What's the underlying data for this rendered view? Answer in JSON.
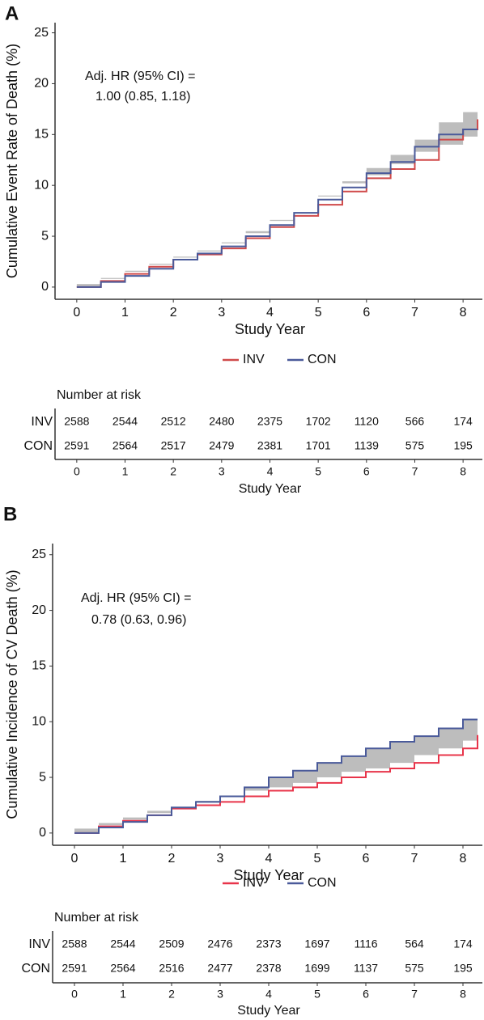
{
  "chart_data": [
    {
      "type": "line",
      "panel": "A",
      "y_label": "Cumulative Event Rate of Death (%)",
      "x_label": "Study Year",
      "annotation": [
        "Adj. HR (95% CI) =",
        "1.00 (0.85, 1.18)"
      ],
      "x": [
        0,
        0.5,
        1,
        1.5,
        2,
        2.5,
        3,
        3.5,
        4,
        4.5,
        5,
        5.5,
        6,
        6.5,
        7,
        7.5,
        8,
        8.3
      ],
      "series": [
        {
          "name": "INV",
          "color": "#d04a4a",
          "values": [
            0,
            0.6,
            1.3,
            2.0,
            2.7,
            3.2,
            3.8,
            4.8,
            5.9,
            7.0,
            8.1,
            9.4,
            10.7,
            11.6,
            12.5,
            14.5,
            15.5,
            16.5
          ]
        },
        {
          "name": "CON",
          "color": "#4a5a9a",
          "values": [
            0,
            0.5,
            1.1,
            1.8,
            2.7,
            3.3,
            4.0,
            5.0,
            6.1,
            7.3,
            8.6,
            9.8,
            11.2,
            12.3,
            13.8,
            15.0,
            15.5,
            15.5
          ]
        }
      ],
      "ci_lower": [
        0,
        0.3,
        0.9,
        1.6,
        2.3,
        2.9,
        3.5,
        4.4,
        5.5,
        6.6,
        7.7,
        8.9,
        10.2,
        11.0,
        12.1,
        13.3,
        14.0,
        14.8
      ],
      "ci_upper": [
        0,
        0.8,
        1.5,
        2.2,
        3.0,
        3.6,
        4.3,
        5.3,
        6.5,
        7.7,
        9.0,
        10.4,
        11.7,
        13.0,
        14.5,
        16.2,
        17.2,
        17.8
      ],
      "band_color": "#bdbdbd",
      "xlim": [
        -0.45,
        8.4
      ],
      "ylim": [
        -1.2,
        26
      ],
      "xticks": [
        0,
        1,
        2,
        3,
        4,
        5,
        6,
        7,
        8
      ],
      "yticks": [
        0,
        5,
        10,
        15,
        20,
        25
      ],
      "risk_table": {
        "title": "Number at risk",
        "x_label": "Study Year",
        "rows": [
          {
            "name": "INV",
            "color": "#d04a4a",
            "values": [
              2588,
              2544,
              2512,
              2480,
              2375,
              1702,
              1120,
              566,
              174
            ]
          },
          {
            "name": "CON",
            "color": "#6a7aaa",
            "values": [
              2591,
              2564,
              2517,
              2479,
              2381,
              1701,
              1139,
              575,
              195
            ]
          }
        ]
      }
    },
    {
      "type": "line",
      "panel": "B",
      "y_label": "Cumulative Incidence of CV Death (%)",
      "x_label": "Study Year",
      "annotation": [
        "Adj. HR (95% CI) =",
        "0.78 (0.63, 0.96)"
      ],
      "x": [
        0,
        0.5,
        1,
        1.5,
        2,
        2.5,
        3,
        3.5,
        4,
        4.5,
        5,
        5.5,
        6,
        6.5,
        7,
        7.5,
        8,
        8.3
      ],
      "series": [
        {
          "name": "INV",
          "color": "#e8344a",
          "values": [
            0,
            0.6,
            1.1,
            1.6,
            2.2,
            2.5,
            2.8,
            3.3,
            3.8,
            4.1,
            4.5,
            5.0,
            5.5,
            5.8,
            6.3,
            7.0,
            7.6,
            8.8
          ]
        },
        {
          "name": "CON",
          "color": "#4a5a9a",
          "values": [
            0,
            0.5,
            1.0,
            1.6,
            2.3,
            2.8,
            3.3,
            4.1,
            5.0,
            5.6,
            6.3,
            6.9,
            7.6,
            8.2,
            8.7,
            9.4,
            10.2,
            10.2
          ]
        }
      ],
      "ci_lower": [
        0,
        0.4,
        0.9,
        1.4,
        2.0,
        2.4,
        2.8,
        3.3,
        3.8,
        4.1,
        4.5,
        5.0,
        5.5,
        5.8,
        6.3,
        7.0,
        7.6,
        8.3
      ],
      "ci_upper": [
        0,
        0.7,
        1.2,
        1.8,
        2.4,
        2.9,
        3.3,
        4.1,
        5.0,
        5.6,
        6.3,
        6.9,
        7.6,
        8.2,
        8.7,
        9.4,
        10.2,
        11.0
      ],
      "band_color": "#bdbdbd",
      "xlim": [
        -0.45,
        8.4
      ],
      "ylim": [
        -1.1,
        26
      ],
      "xticks": [
        0,
        1,
        2,
        3,
        4,
        5,
        6,
        7,
        8
      ],
      "yticks": [
        0,
        5,
        10,
        15,
        20,
        25
      ],
      "risk_table": {
        "title": "Number at risk",
        "x_label": "Study Year",
        "rows": [
          {
            "name": "INV",
            "color": "#e8344a",
            "values": [
              2588,
              2544,
              2509,
              2476,
              2373,
              1697,
              1116,
              564,
              174
            ]
          },
          {
            "name": "CON",
            "color": "#6a7aaa",
            "values": [
              2591,
              2564,
              2516,
              2477,
              2378,
              1699,
              1137,
              575,
              195
            ]
          }
        ]
      }
    }
  ]
}
